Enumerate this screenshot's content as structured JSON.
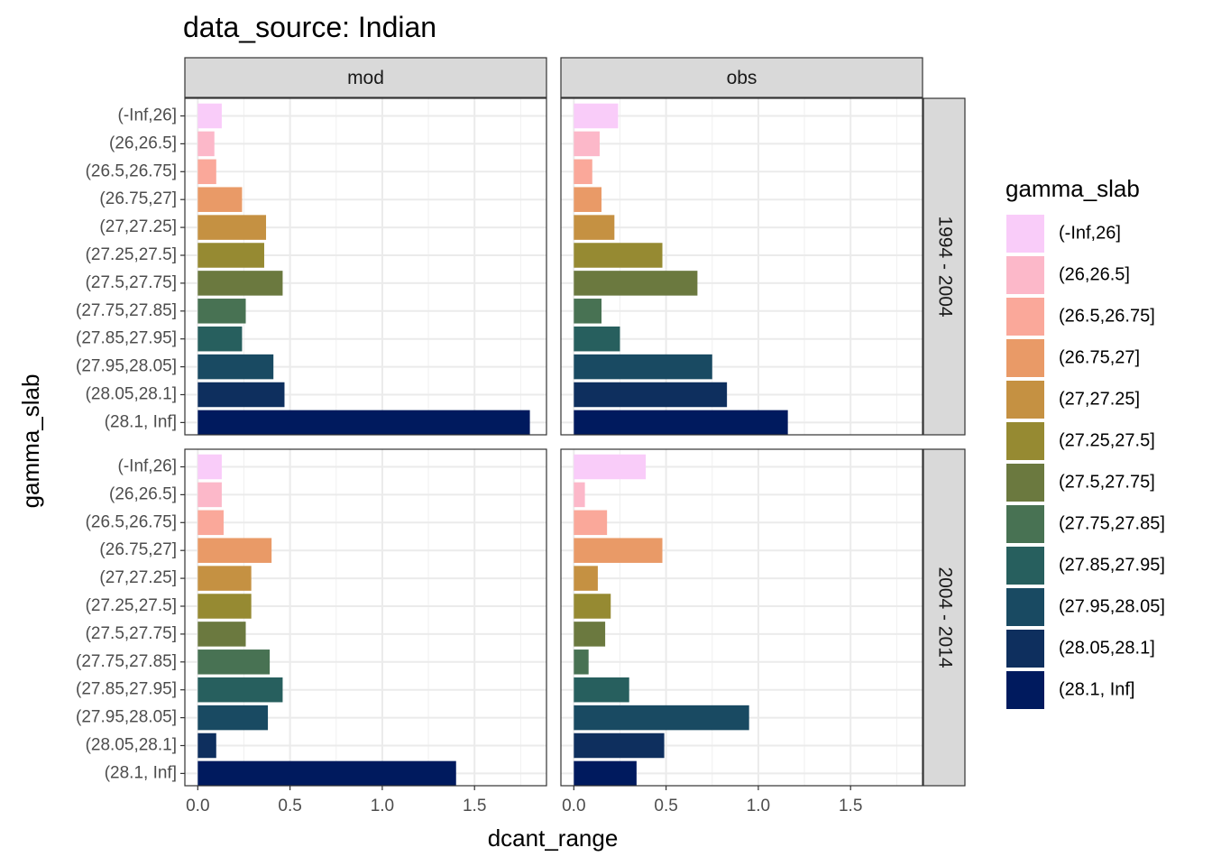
{
  "chart_data": {
    "type": "bar",
    "orientation": "horizontal",
    "title": "data_source: Indian",
    "xlabel": "dcant_range",
    "ylabel": "gamma_slab",
    "xlim": [
      -0.07,
      1.89
    ],
    "x_ticks": [
      0.0,
      0.5,
      1.0,
      1.5
    ],
    "x_tick_labels": [
      "0.0",
      "0.5",
      "1.0",
      "1.5"
    ],
    "grid": true,
    "legend_position": "right",
    "legend_title": "gamma_slab",
    "categories": [
      "(-Inf,26]",
      "(26,26.5]",
      "(26.5,26.75]",
      "(26.75,27]",
      "(27,27.25]",
      "(27.25,27.5]",
      "(27.5,27.75]",
      "(27.75,27.85]",
      "(27.85,27.95]",
      "(27.95,28.05]",
      "(28.05,28.1]",
      "(28.1, Inf]"
    ],
    "colors": [
      "#F9CCF9",
      "#FCB8C9",
      "#FAA89A",
      "#E99A67",
      "#C59142",
      "#968A32",
      "#6B793F",
      "#487253",
      "#275F5E",
      "#194A62",
      "#0E2F5E",
      "#001A5E"
    ],
    "col_facets": [
      "mod",
      "obs"
    ],
    "row_facets": [
      "1994 - 2004",
      "2004 - 2014"
    ],
    "panels": [
      {
        "col": "mod",
        "row": "1994 - 2004",
        "values": [
          0.13,
          0.09,
          0.1,
          0.24,
          0.37,
          0.36,
          0.46,
          0.26,
          0.24,
          0.41,
          0.47,
          1.8
        ]
      },
      {
        "col": "obs",
        "row": "1994 - 2004",
        "values": [
          0.24,
          0.14,
          0.1,
          0.15,
          0.22,
          0.48,
          0.67,
          0.15,
          0.25,
          0.75,
          0.83,
          1.16
        ]
      },
      {
        "col": "mod",
        "row": "2004 - 2014",
        "values": [
          0.13,
          0.13,
          0.14,
          0.4,
          0.29,
          0.29,
          0.26,
          0.39,
          0.46,
          0.38,
          0.1,
          1.4
        ]
      },
      {
        "col": "obs",
        "row": "2004 - 2014",
        "values": [
          0.39,
          0.06,
          0.18,
          0.48,
          0.13,
          0.2,
          0.17,
          0.08,
          0.3,
          0.95,
          0.49,
          0.34
        ]
      }
    ]
  }
}
